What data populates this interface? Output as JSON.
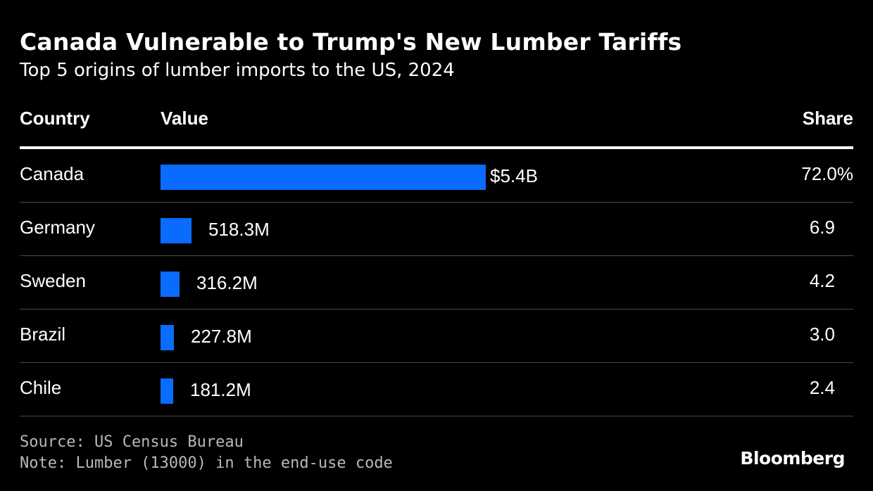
{
  "title": "Canada Vulnerable to Trump's New Lumber Tariffs",
  "subtitle": "Top 5 origins of lumber imports to the US, 2024",
  "columns": {
    "country": "Country",
    "value": "Value",
    "share": "Share"
  },
  "chart_data": {
    "type": "bar",
    "orientation": "horizontal",
    "title": "Canada Vulnerable to Trump's New Lumber Tariffs",
    "subtitle": "Top 5 origins of lumber imports to the US, 2024",
    "categories": [
      "Canada",
      "Germany",
      "Sweden",
      "Brazil",
      "Chile"
    ],
    "values": [
      5.4,
      0.5183,
      0.3162,
      0.2278,
      0.1812
    ],
    "value_unit": "billion USD",
    "value_labels": [
      "$5.4B",
      "518.3M",
      "316.2M",
      "227.8M",
      "181.2M"
    ],
    "share_labels": [
      "72.0%",
      "6.9",
      "4.2",
      "3.0",
      "2.4"
    ],
    "shares": [
      72.0,
      6.9,
      4.2,
      3.0,
      2.4
    ],
    "bar_color": "#0a6cff",
    "grid": false
  },
  "rows": [
    {
      "country": "Canada",
      "value": 5.4,
      "value_label": "$5.4B",
      "share": "72.0%"
    },
    {
      "country": "Germany",
      "value": 0.5183,
      "value_label": "518.3M",
      "share": "6.9"
    },
    {
      "country": "Sweden",
      "value": 0.3162,
      "value_label": "316.2M",
      "share": "4.2"
    },
    {
      "country": "Brazil",
      "value": 0.2278,
      "value_label": "227.8M",
      "share": "3.0"
    },
    {
      "country": "Chile",
      "value": 0.1812,
      "value_label": "181.2M",
      "share": "2.4"
    }
  ],
  "footer": {
    "source": "Source: US Census Bureau",
    "note": "Note: Lumber (13000) in the end-use code",
    "brand": "Bloomberg"
  },
  "colors": {
    "background": "#000000",
    "text": "#ffffff",
    "bar": "#0a6cff",
    "footnote": "#b8b8b8"
  }
}
